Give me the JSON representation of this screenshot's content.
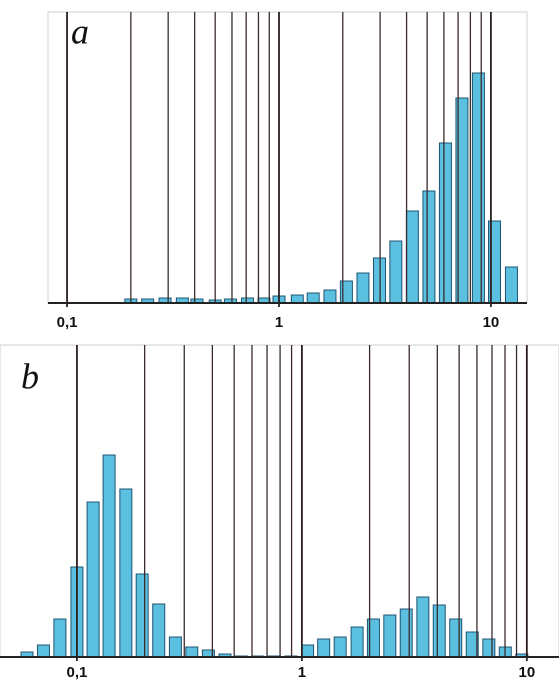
{
  "chart_data": [
    {
      "type": "bar",
      "label": "a",
      "xscale": "log",
      "color": "#5bbfe0",
      "x": [
        0.2,
        0.24,
        0.29,
        0.35,
        0.41,
        0.5,
        0.59,
        0.71,
        0.85,
        1.0,
        1.22,
        1.45,
        1.74,
        2.08,
        2.49,
        2.98,
        3.56,
        4.26,
        5.1,
        6.1,
        7.3,
        8.73,
        10.4,
        12.5
      ],
      "values": [
        4,
        4,
        5,
        5,
        4,
        3,
        4,
        5,
        5,
        7,
        8,
        10,
        13,
        22,
        30,
        45,
        62,
        92,
        112,
        160,
        205,
        230,
        82,
        36
      ],
      "xlim": [
        0.0813,
        14.8
      ],
      "ylim": [
        0,
        291
      ],
      "xticks": [
        {
          "value": 0.1,
          "label": "0,1"
        },
        1,
        10
      ],
      "xminor": [
        0.2,
        0.3,
        0.4,
        0.5,
        0.6,
        0.7,
        0.8,
        0.9,
        2,
        3,
        4,
        5,
        6,
        7,
        8,
        9
      ]
    },
    {
      "type": "bar",
      "label": "b",
      "xscale": "log",
      "color": "#5bbfe0",
      "x": [
        0.06,
        0.071,
        0.084,
        0.1,
        0.118,
        0.139,
        0.165,
        0.195,
        0.231,
        0.274,
        0.324,
        0.384,
        0.455,
        0.538,
        0.637,
        0.755,
        0.894,
        1.06,
        1.25,
        1.48,
        1.76,
        2.08,
        2.46,
        2.91,
        3.45,
        4.08,
        4.83,
        5.72,
        6.78,
        8.02,
        9.5
      ],
      "values": [
        5,
        12,
        38,
        90,
        155,
        202,
        168,
        83,
        53,
        20,
        10,
        7,
        3,
        1,
        1,
        1,
        1,
        12,
        18,
        20,
        30,
        38,
        42,
        48,
        60,
        52,
        38,
        25,
        18,
        10,
        3
      ],
      "xlim": [
        0.0455,
        13.9
      ],
      "ylim": [
        0,
        312
      ],
      "xticks": [
        {
          "value": 0.1,
          "label": "0,1"
        },
        1,
        10
      ],
      "xminor": [
        0.2,
        0.3,
        0.4,
        0.5,
        0.6,
        0.7,
        0.8,
        0.9,
        2,
        3,
        4,
        5,
        6,
        7,
        8,
        9
      ]
    }
  ]
}
